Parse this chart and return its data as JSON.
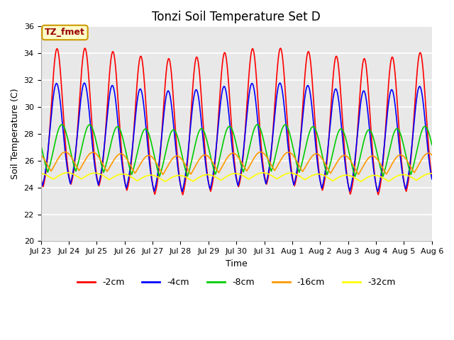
{
  "title": "Tonzi Soil Temperature Set D",
  "xlabel": "Time",
  "ylabel": "Soil Temperature (C)",
  "ylim": [
    20,
    36
  ],
  "yticks": [
    20,
    22,
    24,
    26,
    28,
    30,
    32,
    34,
    36
  ],
  "xtick_labels": [
    "Jul 23",
    "Jul 24",
    "Jul 25",
    "Jul 26",
    "Jul 27",
    "Jul 28",
    "Jul 29",
    "Jul 30",
    "Jul 31",
    "Aug 1",
    "Aug 2",
    "Aug 3",
    "Aug 4",
    "Aug 5",
    "Aug 6"
  ],
  "lines": [
    {
      "label": "-2cm",
      "color": "#ff0000"
    },
    {
      "label": "-4cm",
      "color": "#0000ff"
    },
    {
      "label": "-8cm",
      "color": "#00cc00"
    },
    {
      "label": "-16cm",
      "color": "#ff9900"
    },
    {
      "label": "-32cm",
      "color": "#ffff00"
    }
  ],
  "annotation_text": "TZ_fmet",
  "annotation_color": "#990000",
  "annotation_bg": "#ffffcc",
  "annotation_border": "#cc9900",
  "bg_color": "#e8e8e8",
  "grid_color": "#ffffff",
  "legend_fontsize": 9,
  "title_fontsize": 12,
  "figsize": [
    6.4,
    4.8
  ],
  "dpi": 100
}
